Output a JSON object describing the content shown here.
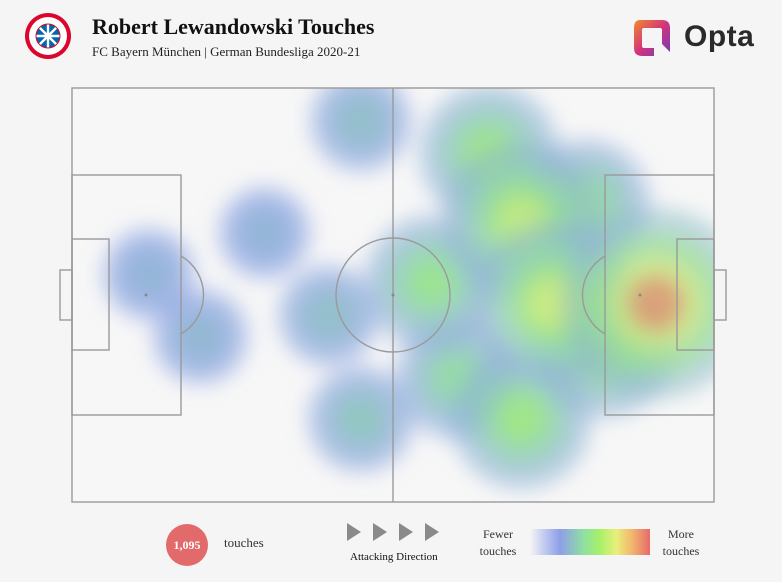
{
  "header": {
    "title": "Robert Lewandowski Touches",
    "subtitle": "FC Bayern München | German Bundesliga 2020-21",
    "club_logo_icon": "fc-bayern-crest-icon",
    "brand_name": "Opta",
    "brand_icon": "opta-logo-icon"
  },
  "footer": {
    "touch_count": "1,095",
    "touch_label": "touches",
    "direction_label": "Attacking Direction",
    "legend_low": "Fewer touches",
    "legend_high": "More touches",
    "arrow_icon": "play-triangle-icon"
  },
  "colors": {
    "badge": "#e36a6a",
    "pitch_line": "#9a9a9a",
    "heat_low": "#8d9fe8",
    "heat_mid": "#a6f06a",
    "heat_high": "#e86a6a"
  },
  "chart_data": {
    "type": "heatmap",
    "title": "Robert Lewandowski Touches",
    "subtitle": "FC Bayern München | German Bundesliga 2020-21",
    "x_axis": "pitch length (0 = own goal line, 100 = opponent goal line)",
    "y_axis": "pitch width (0 = top touchline, 100 = bottom touchline)",
    "xlim": [
      0,
      100
    ],
    "ylim": [
      0,
      100
    ],
    "total_touches": 1095,
    "scale": "relative density, 0 = fewest, 1 = most",
    "hotspots": [
      {
        "x": 91,
        "y": 52,
        "intensity": 1.0
      },
      {
        "x": 75,
        "y": 52,
        "intensity": 0.75
      },
      {
        "x": 70,
        "y": 32,
        "intensity": 0.7
      },
      {
        "x": 65,
        "y": 16,
        "intensity": 0.55
      },
      {
        "x": 56,
        "y": 47,
        "intensity": 0.5
      },
      {
        "x": 70,
        "y": 80,
        "intensity": 0.55
      },
      {
        "x": 83,
        "y": 62,
        "intensity": 0.6
      },
      {
        "x": 80,
        "y": 28,
        "intensity": 0.45
      },
      {
        "x": 60,
        "y": 70,
        "intensity": 0.4
      },
      {
        "x": 45,
        "y": 80,
        "intensity": 0.25
      },
      {
        "x": 40,
        "y": 55,
        "intensity": 0.2
      },
      {
        "x": 45,
        "y": 8,
        "intensity": 0.2
      },
      {
        "x": 20,
        "y": 60,
        "intensity": 0.15
      },
      {
        "x": 12,
        "y": 45,
        "intensity": 0.12
      },
      {
        "x": 30,
        "y": 35,
        "intensity": 0.12
      }
    ]
  }
}
